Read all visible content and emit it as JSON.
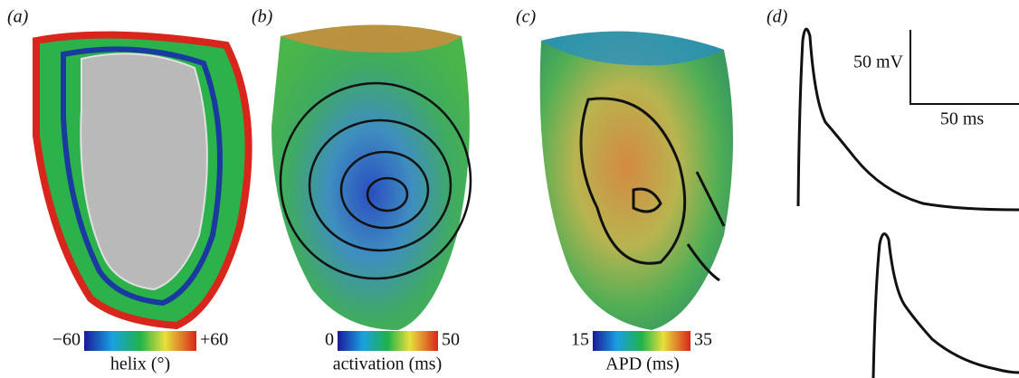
{
  "panels": [
    {
      "label": "(a)",
      "colorbar": {
        "min": "−60",
        "max": "+60",
        "label": "helix (°)"
      }
    },
    {
      "label": "(b)",
      "colorbar": {
        "min": "0",
        "max": "50",
        "label": "activation (ms)"
      }
    },
    {
      "label": "(c)",
      "colorbar": {
        "min": "15",
        "max": "35",
        "label": "APD (ms)"
      }
    },
    {
      "label": "(d)",
      "scale_bar": {
        "voltage": "50 mV",
        "time": "50 ms"
      }
    }
  ]
}
